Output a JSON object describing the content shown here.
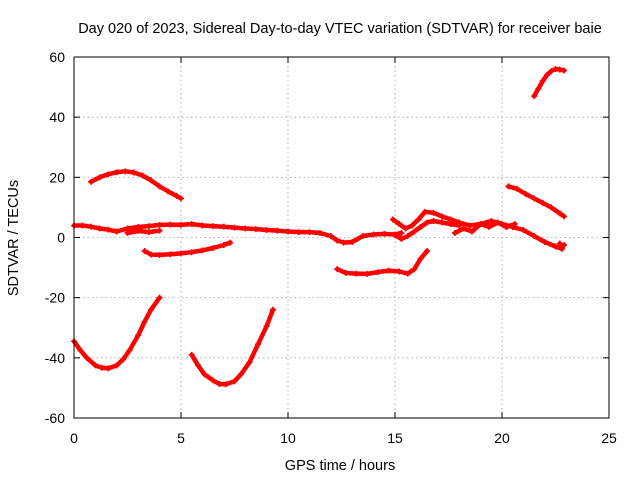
{
  "chart_data": {
    "type": "line",
    "title": "Day 020 of 2023, Sidereal Day-to-day VTEC variation (SDTVAR) for receiver baie",
    "xlabel": "GPS time / hours",
    "ylabel": "SDTVAR / TECUs",
    "xlim": [
      0,
      25
    ],
    "ylim": [
      -60,
      60
    ],
    "xticks": [
      0,
      5,
      10,
      15,
      20,
      25
    ],
    "yticks": [
      -60,
      -40,
      -20,
      0,
      20,
      40,
      60
    ],
    "xtick_labels": [
      "0",
      "5",
      "10",
      "15",
      "20",
      "25"
    ],
    "ytick_labels": [
      "-60",
      "-40",
      "-20",
      "0",
      "20",
      "40",
      "60"
    ],
    "grid": true,
    "color": "#ff0000",
    "series": [
      {
        "name": "arc-neg-1",
        "x": [
          0.0,
          0.3,
          0.6,
          1.0,
          1.3,
          1.6,
          2.0,
          2.3,
          2.6,
          3.0,
          3.3,
          3.6,
          4.0
        ],
        "y": [
          -34.5,
          -37.5,
          -40.0,
          -42.5,
          -43.3,
          -43.5,
          -42.5,
          -40.5,
          -37.5,
          -32.5,
          -28.0,
          -24.0,
          -20.0
        ]
      },
      {
        "name": "arc-neg-2",
        "x": [
          5.5,
          5.8,
          6.1,
          6.5,
          6.8,
          7.1,
          7.5,
          7.8,
          8.2,
          8.6,
          9.0,
          9.3
        ],
        "y": [
          -39.0,
          -42.5,
          -45.5,
          -47.5,
          -48.7,
          -48.8,
          -47.8,
          -45.5,
          -41.5,
          -35.5,
          -29.5,
          -24.0
        ]
      },
      {
        "name": "arc-pos-1",
        "x": [
          0.8,
          1.2,
          1.6,
          2.0,
          2.4,
          2.8,
          3.2,
          3.6,
          4.0,
          4.4,
          4.8,
          5.0
        ],
        "y": [
          18.5,
          20.0,
          21.0,
          21.7,
          22.0,
          21.6,
          20.6,
          19.0,
          17.0,
          15.3,
          13.8,
          13.0
        ]
      },
      {
        "name": "arc-neg-5",
        "x": [
          3.3,
          3.6,
          4.0,
          4.5,
          5.0,
          5.5,
          6.0,
          6.5,
          7.0,
          7.3
        ],
        "y": [
          -4.5,
          -5.7,
          -5.8,
          -5.6,
          -5.3,
          -4.9,
          -4.3,
          -3.5,
          -2.5,
          -1.7
        ]
      },
      {
        "name": "near-zero-1",
        "x": [
          0.0,
          0.4,
          0.8,
          1.2,
          1.6,
          2.0,
          2.5,
          3.0,
          3.5,
          4.0,
          4.5,
          5.0,
          5.5,
          6.0,
          6.5,
          7.0,
          7.5,
          8.0,
          8.5,
          9.0,
          9.5,
          10.0,
          10.5,
          11.0,
          11.5,
          12.0,
          12.3,
          12.6,
          13.0,
          13.5,
          14.0,
          14.5,
          15.0,
          15.3
        ],
        "y": [
          4.0,
          4.0,
          3.6,
          3.0,
          2.6,
          2.0,
          3.0,
          3.5,
          3.8,
          4.2,
          4.3,
          4.2,
          4.5,
          4.0,
          3.8,
          3.6,
          3.3,
          3.0,
          2.8,
          2.5,
          2.3,
          2.0,
          1.8,
          1.8,
          1.5,
          0.5,
          -1.0,
          -1.7,
          -1.5,
          0.5,
          1.0,
          1.2,
          1.0,
          1.5
        ]
      },
      {
        "name": "near-zero-2",
        "x": [
          2.5,
          3.0,
          3.5,
          4.0
        ],
        "y": [
          1.5,
          2.2,
          1.8,
          2.3
        ]
      },
      {
        "name": "near-zero-3",
        "x": [
          15.0,
          15.3,
          15.6,
          15.9,
          16.2,
          16.5,
          16.8,
          17.2,
          17.6,
          18.0
        ],
        "y": [
          0.8,
          -0.5,
          0.5,
          2.0,
          3.5,
          5.0,
          5.5,
          5.0,
          4.5,
          4.0
        ]
      },
      {
        "name": "near-zero-4",
        "x": [
          14.9,
          15.2,
          15.5,
          15.8,
          16.1,
          16.4,
          16.8,
          17.2,
          17.6
        ],
        "y": [
          6.0,
          4.5,
          3.0,
          4.0,
          6.0,
          8.5,
          8.2,
          7.0,
          6.0
        ]
      },
      {
        "name": "near-zero-5",
        "x": [
          17.6,
          18.0,
          18.5,
          19.0,
          19.5,
          20.0,
          20.5,
          21.0,
          21.5,
          22.0,
          22.5,
          22.8
        ],
        "y": [
          6.0,
          5.0,
          4.0,
          4.5,
          5.5,
          4.5,
          3.5,
          2.5,
          0.5,
          -1.5,
          -3.0,
          -3.8
        ]
      },
      {
        "name": "near-zero-6",
        "x": [
          17.8,
          18.2,
          18.6,
          19.0,
          19.4,
          19.8,
          20.2,
          20.6
        ],
        "y": [
          1.5,
          3.0,
          2.0,
          4.5,
          3.5,
          5.0,
          3.5,
          4.5
        ]
      },
      {
        "name": "arc-neg-3",
        "x": [
          12.3,
          12.7,
          13.2,
          13.7,
          14.2,
          14.7,
          15.2,
          15.6,
          15.9,
          16.2,
          16.5
        ],
        "y": [
          -10.5,
          -11.8,
          -12.0,
          -12.1,
          -11.5,
          -11.0,
          -11.3,
          -12.0,
          -10.5,
          -7.0,
          -4.5
        ]
      },
      {
        "name": "arc-pos-2",
        "x": [
          20.3,
          20.7,
          21.1,
          21.5,
          21.9,
          22.3,
          22.7,
          22.9
        ],
        "y": [
          17.0,
          16.2,
          14.5,
          13.0,
          11.5,
          10.0,
          8.0,
          7.0
        ]
      },
      {
        "name": "arc-pos-3",
        "x": [
          21.5,
          21.7,
          21.9,
          22.1,
          22.3,
          22.5,
          22.7,
          22.9
        ],
        "y": [
          47.0,
          49.5,
          52.0,
          54.0,
          55.3,
          56.0,
          55.8,
          55.5
        ]
      },
      {
        "name": "arc-neg-4",
        "x": [
          22.7,
          22.8,
          22.9
        ],
        "y": [
          -2.0,
          -3.5,
          -2.5
        ]
      }
    ]
  }
}
